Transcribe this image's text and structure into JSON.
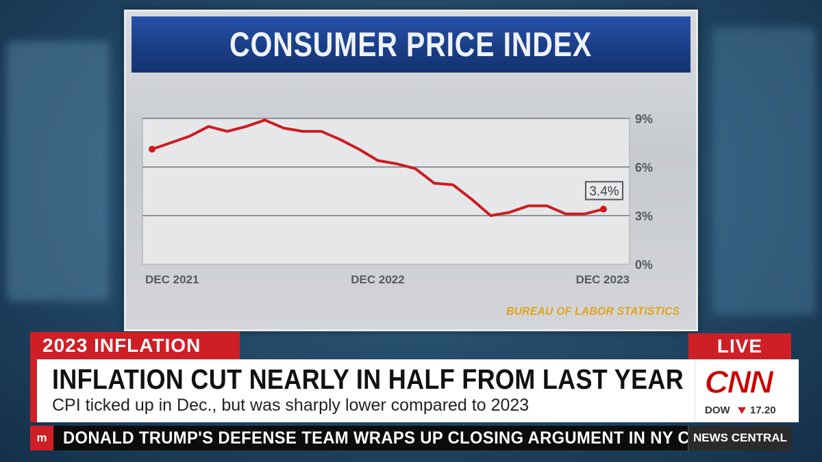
{
  "graphic": {
    "title": "CONSUMER PRICE INDEX",
    "source": "BUREAU OF LABOR STATISTICS"
  },
  "chart_data": {
    "type": "line",
    "title": "CONSUMER PRICE INDEX",
    "xlabel": "",
    "ylabel": "",
    "x_tick_labels": [
      "DEC 2021",
      "DEC 2022",
      "DEC 2023"
    ],
    "y_tick_labels": [
      "9%",
      "6%",
      "3%",
      "0%"
    ],
    "y_ticks": [
      9,
      6,
      3,
      0
    ],
    "ylim": [
      0,
      9
    ],
    "grid": true,
    "legend": "none",
    "series": [
      {
        "x": [
          "2021-12",
          "2022-01",
          "2022-02",
          "2022-03",
          "2022-04",
          "2022-05",
          "2022-06",
          "2022-07",
          "2022-08",
          "2022-09",
          "2022-10",
          "2022-11",
          "2022-12",
          "2023-01",
          "2023-02",
          "2023-03",
          "2023-04",
          "2023-05",
          "2023-06",
          "2023-07",
          "2023-08",
          "2023-09",
          "2023-10",
          "2023-11",
          "2023-12"
        ],
        "values": [
          7.1,
          7.5,
          7.9,
          8.5,
          8.2,
          8.5,
          8.9,
          8.4,
          8.2,
          8.2,
          7.7,
          7.1,
          6.4,
          6.2,
          5.9,
          5.0,
          4.9,
          4.0,
          3.0,
          3.2,
          3.6,
          3.6,
          3.1,
          3.1,
          3.4
        ]
      }
    ],
    "annotations": [
      {
        "x": "2023-12",
        "y": 3.4,
        "text": "3.4%"
      }
    ],
    "colors": {
      "line": "#cc1d22",
      "grid": "#8e9196"
    }
  },
  "news": {
    "topic": "2023 INFLATION",
    "live": "LIVE",
    "headline": "INFLATION CUT NEARLY IN HALF FROM LAST YEAR",
    "subheadline": "CPI ticked up in Dec., but was sharply lower compared to 2023",
    "logo": "CNN",
    "ticker_index": "DOW",
    "ticker_value": "17.20",
    "crawl_marker": "m",
    "crawl": "DONALD TRUMP'S DEFENSE TEAM WRAPS UP CLOSING ARGUMENT IN NY CIVIL FR",
    "show": "NEWS CENTRAL",
    "accent": "#cf1f26"
  }
}
